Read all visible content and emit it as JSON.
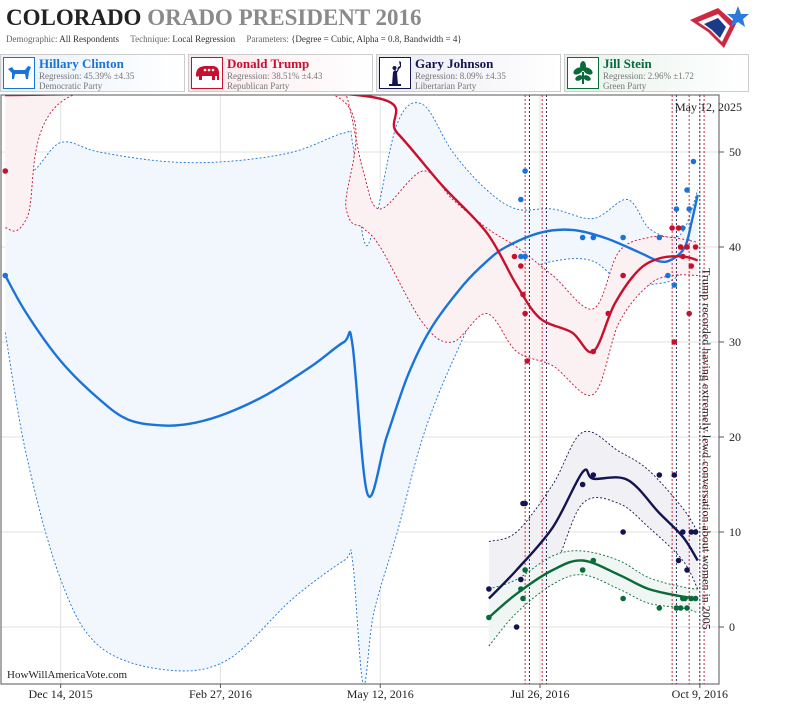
{
  "header": {
    "state": "COLORADO",
    "state_ghost": "ORADO",
    "race": "PRESIDENT 2016",
    "demographic_label": "Demographic:",
    "demographic": "All Respondents",
    "technique_label": "Technique:",
    "technique": "Local Regression",
    "parameters_label": "Parameters:",
    "parameters": "{Degree = Cubic, Alpha = 0.8, Bandwidth = 4}"
  },
  "candidates": [
    {
      "name": "Hillary Clinton",
      "regression": "Regression: 45.39% ±4.35",
      "party": "Democratic Party",
      "color": "#1a73d9",
      "icon": "donkey-icon"
    },
    {
      "name": "Donald Trump",
      "regression": "Regression: 38.51% ±4.43",
      "party": "Republican Party",
      "color": "#c8102e",
      "icon": "elephant-icon"
    },
    {
      "name": "Gary Johnson",
      "regression": "Regression: 8.09% ±4.35",
      "party": "Libertarian Party",
      "color": "#141450",
      "icon": "liberty-statue-icon"
    },
    {
      "name": "Jill Stein",
      "regression": "Regression: 2.96% ±1.72",
      "party": "Green Party",
      "color": "#0a6a3a",
      "icon": "leaf-icon"
    }
  ],
  "chart_data": {
    "type": "scatter",
    "x_type": "date",
    "xlim": [
      "2015-11-16",
      "2016-10-18"
    ],
    "ylim": [
      -6,
      56
    ],
    "y_ticks": [
      0,
      10,
      20,
      30,
      40,
      50
    ],
    "x_ticks": [
      {
        "date": "2015-12-14",
        "label": "Dec 14, 2015"
      },
      {
        "date": "2016-02-27",
        "label": "Feb 27, 2016"
      },
      {
        "date": "2016-05-12",
        "label": "May 12, 2016"
      },
      {
        "date": "2016-07-26",
        "label": "Jul 26, 2016"
      },
      {
        "date": "2016-10-09",
        "label": "Oct 9, 2016"
      }
    ],
    "grid": true,
    "date_stamp": "May 12, 2025",
    "watermark": "HowWillAmericaVote.com",
    "annotation": {
      "date": "2016-10-08",
      "text": "Trump recorded having extremely lewd conversation about women in 2005"
    },
    "event_lines": [
      "2016-07-19",
      "2016-07-21",
      "2016-07-27",
      "2016-07-29",
      "2016-09-26",
      "2016-09-28",
      "2016-10-04",
      "2016-10-09",
      "2016-10-11"
    ],
    "series": [
      {
        "name": "Hillary Clinton",
        "color": "#1a73d9",
        "points": [
          [
            "2015-11-18",
            37
          ],
          [
            "2016-07-17",
            45
          ],
          [
            "2016-07-17",
            39
          ],
          [
            "2016-07-19",
            48
          ],
          [
            "2016-07-19",
            39
          ],
          [
            "2016-08-15",
            41
          ],
          [
            "2016-08-20",
            41
          ],
          [
            "2016-09-03",
            41
          ],
          [
            "2016-09-20",
            41
          ],
          [
            "2016-09-24",
            37
          ],
          [
            "2016-09-27",
            36
          ],
          [
            "2016-09-28",
            44
          ],
          [
            "2016-09-30",
            40
          ],
          [
            "2016-10-01",
            42
          ],
          [
            "2016-10-03",
            46
          ],
          [
            "2016-10-04",
            44
          ],
          [
            "2016-10-06",
            49
          ]
        ],
        "trend": [
          [
            "2015-11-18",
            37
          ],
          [
            "2015-11-28",
            33
          ],
          [
            "2015-12-14",
            28
          ],
          [
            "2016-01-01",
            24
          ],
          [
            "2016-01-15",
            21.8
          ],
          [
            "2016-02-01",
            21.2
          ],
          [
            "2016-02-15",
            21.5
          ],
          [
            "2016-03-01",
            22.5
          ],
          [
            "2016-03-20",
            24.5
          ],
          [
            "2016-04-10",
            27.5
          ],
          [
            "2016-04-25",
            30
          ],
          [
            "2016-04-29",
            29.7
          ],
          [
            "2016-05-06",
            14
          ],
          [
            "2016-05-15",
            20
          ],
          [
            "2016-05-25",
            26.5
          ],
          [
            "2016-06-05",
            31.5
          ],
          [
            "2016-06-20",
            36
          ],
          [
            "2016-07-01",
            38.5
          ],
          [
            "2016-07-10",
            40
          ],
          [
            "2016-07-26",
            41.5
          ],
          [
            "2016-08-10",
            41.8
          ],
          [
            "2016-08-25",
            41
          ],
          [
            "2016-09-10",
            39.5
          ],
          [
            "2016-09-20",
            38.5
          ],
          [
            "2016-09-26",
            38.7
          ],
          [
            "2016-10-02",
            40
          ],
          [
            "2016-10-05",
            42.5
          ],
          [
            "2016-10-08",
            45.5
          ]
        ],
        "band": [
          [
            "2015-11-18",
            56,
            31
          ],
          [
            "2015-11-28",
            48,
            18
          ],
          [
            "2015-12-14",
            51,
            5
          ],
          [
            "2016-01-01",
            50,
            -2
          ],
          [
            "2016-02-01",
            49,
            -4.5
          ],
          [
            "2016-03-01",
            49,
            -3.5
          ],
          [
            "2016-04-01",
            50,
            3
          ],
          [
            "2016-04-25",
            52,
            7
          ],
          [
            "2016-04-29",
            51,
            7
          ],
          [
            "2016-05-04",
            41,
            -6
          ],
          [
            "2016-05-09",
            42,
            1.5
          ],
          [
            "2016-05-20",
            53,
            10
          ],
          [
            "2016-06-01",
            55,
            20
          ],
          [
            "2016-06-15",
            50,
            28
          ],
          [
            "2016-07-01",
            46,
            35
          ],
          [
            "2016-07-15",
            44,
            37
          ],
          [
            "2016-08-01",
            44,
            38.5
          ],
          [
            "2016-08-20",
            43,
            38.5
          ],
          [
            "2016-09-05",
            45,
            35.5
          ],
          [
            "2016-09-15",
            42,
            36
          ],
          [
            "2016-09-26",
            41,
            36.5
          ],
          [
            "2016-10-02",
            42,
            38
          ],
          [
            "2016-10-08",
            46,
            40
          ]
        ]
      },
      {
        "name": "Donald Trump",
        "color": "#c8102e",
        "points": [
          [
            "2015-11-18",
            48
          ],
          [
            "2016-07-14",
            39
          ],
          [
            "2016-07-17",
            38
          ],
          [
            "2016-07-18",
            35
          ],
          [
            "2016-07-19",
            33
          ],
          [
            "2016-07-20",
            28
          ],
          [
            "2016-08-20",
            29
          ],
          [
            "2016-08-27",
            33
          ],
          [
            "2016-09-03",
            37
          ],
          [
            "2016-09-26",
            42
          ],
          [
            "2016-09-27",
            30
          ],
          [
            "2016-09-29",
            42
          ],
          [
            "2016-09-30",
            40
          ],
          [
            "2016-10-01",
            39
          ],
          [
            "2016-10-03",
            40
          ],
          [
            "2016-10-04",
            33
          ],
          [
            "2016-10-05",
            38
          ],
          [
            "2016-10-07",
            40
          ]
        ],
        "trend": [
          [
            "2015-11-18",
            56
          ],
          [
            "2016-05-01",
            56
          ],
          [
            "2016-05-20",
            52
          ],
          [
            "2016-06-10",
            46.5
          ],
          [
            "2016-07-01",
            41.5
          ],
          [
            "2016-07-15",
            36
          ],
          [
            "2016-07-26",
            32.5
          ],
          [
            "2016-08-10",
            31
          ],
          [
            "2016-08-20",
            29
          ],
          [
            "2016-08-30",
            34
          ],
          [
            "2016-09-10",
            37.5
          ],
          [
            "2016-09-20",
            38.8
          ],
          [
            "2016-10-01",
            39
          ],
          [
            "2016-10-08",
            38.6
          ]
        ],
        "band": [
          [
            "2015-11-18",
            56,
            42
          ],
          [
            "2015-11-28",
            56,
            43
          ],
          [
            "2015-12-20",
            56,
            56
          ],
          [
            "2016-04-20",
            56,
            56
          ],
          [
            "2016-04-26",
            56,
            44
          ],
          [
            "2016-05-04",
            48,
            42
          ],
          [
            "2016-05-12",
            44,
            40
          ],
          [
            "2016-06-01",
            48,
            32
          ],
          [
            "2016-06-15",
            45,
            30
          ],
          [
            "2016-07-01",
            42,
            33
          ],
          [
            "2016-07-15",
            40,
            29
          ],
          [
            "2016-08-01",
            37,
            27.5
          ],
          [
            "2016-08-20",
            33.5,
            24.5
          ],
          [
            "2016-09-01",
            39.5,
            32
          ],
          [
            "2016-09-15",
            41,
            36
          ],
          [
            "2016-09-26",
            41,
            37
          ],
          [
            "2016-10-08",
            40.5,
            37
          ]
        ]
      },
      {
        "name": "Gary Johnson",
        "color": "#141450",
        "points": [
          [
            "2016-07-02",
            4
          ],
          [
            "2016-07-15",
            0
          ],
          [
            "2016-07-17",
            5
          ],
          [
            "2016-07-18",
            13
          ],
          [
            "2016-07-19",
            13
          ],
          [
            "2016-08-15",
            15
          ],
          [
            "2016-08-20",
            16
          ],
          [
            "2016-09-03",
            10
          ],
          [
            "2016-09-20",
            16
          ],
          [
            "2016-09-27",
            16
          ],
          [
            "2016-09-29",
            7
          ],
          [
            "2016-10-01",
            10
          ],
          [
            "2016-10-03",
            6
          ],
          [
            "2016-10-05",
            10
          ],
          [
            "2016-10-07",
            10
          ]
        ],
        "trend": [
          [
            "2016-07-02",
            3
          ],
          [
            "2016-07-15",
            6
          ],
          [
            "2016-08-01",
            10.5
          ],
          [
            "2016-08-15",
            16.3
          ],
          [
            "2016-08-20",
            15.6
          ],
          [
            "2016-09-05",
            15.5
          ],
          [
            "2016-09-20",
            12
          ],
          [
            "2016-10-01",
            9.5
          ],
          [
            "2016-10-08",
            7
          ]
        ],
        "band": [
          [
            "2016-07-02",
            9,
            -2
          ],
          [
            "2016-07-15",
            10,
            2
          ],
          [
            "2016-08-01",
            15,
            6
          ],
          [
            "2016-08-15",
            20.5,
            13
          ],
          [
            "2016-09-01",
            18.5,
            13
          ],
          [
            "2016-09-15",
            16.5,
            10.5
          ],
          [
            "2016-10-01",
            12.5,
            7
          ],
          [
            "2016-10-08",
            10,
            4
          ]
        ]
      },
      {
        "name": "Jill Stein",
        "color": "#0a6a3a",
        "points": [
          [
            "2016-07-02",
            1
          ],
          [
            "2016-07-17",
            4
          ],
          [
            "2016-07-18",
            3
          ],
          [
            "2016-07-19",
            6
          ],
          [
            "2016-08-15",
            6
          ],
          [
            "2016-08-20",
            7
          ],
          [
            "2016-09-03",
            3
          ],
          [
            "2016-09-20",
            2
          ],
          [
            "2016-09-28",
            2
          ],
          [
            "2016-09-30",
            2
          ],
          [
            "2016-10-01",
            3
          ],
          [
            "2016-10-02",
            3
          ],
          [
            "2016-10-03",
            2
          ],
          [
            "2016-10-05",
            3
          ],
          [
            "2016-10-07",
            3
          ]
        ],
        "trend": [
          [
            "2016-07-02",
            1
          ],
          [
            "2016-07-15",
            3.5
          ],
          [
            "2016-08-01",
            6
          ],
          [
            "2016-08-15",
            7
          ],
          [
            "2016-09-01",
            5.5
          ],
          [
            "2016-09-15",
            4
          ],
          [
            "2016-10-01",
            3.2
          ],
          [
            "2016-10-08",
            3
          ]
        ],
        "band": [
          [
            "2016-07-02",
            4,
            -2
          ],
          [
            "2016-07-15",
            5,
            1.5
          ],
          [
            "2016-08-01",
            7.5,
            4.5
          ],
          [
            "2016-08-15",
            8,
            5.5
          ],
          [
            "2016-09-01",
            7,
            4
          ],
          [
            "2016-09-15",
            5.2,
            2.5
          ],
          [
            "2016-10-01",
            4.2,
            2
          ],
          [
            "2016-10-08",
            4,
            1.5
          ]
        ]
      }
    ]
  }
}
